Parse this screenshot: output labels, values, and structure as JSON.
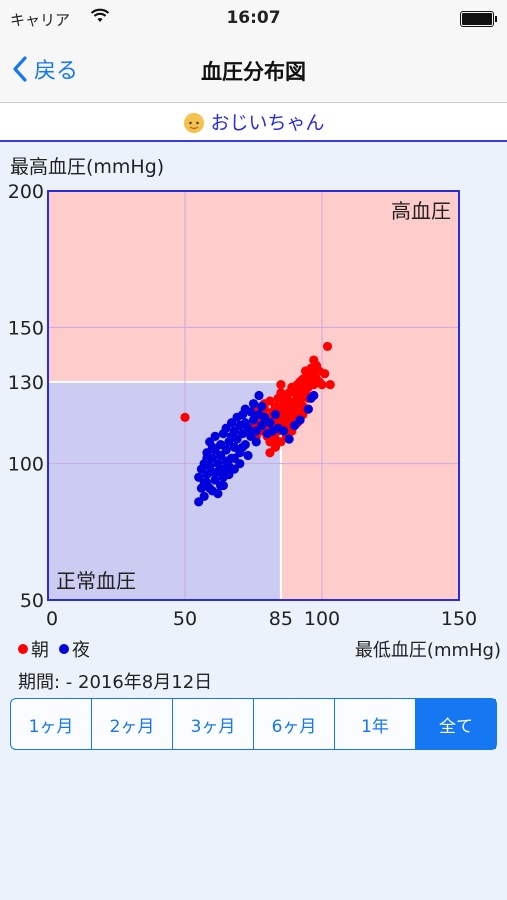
{
  "status_bar": {
    "carrier": "キャリア",
    "time": "16:07"
  },
  "nav": {
    "back_label": "戻る",
    "title": "血圧分布図"
  },
  "profile": {
    "name": "おじいちゃん",
    "icon": "grandpa-face-icon"
  },
  "legend": {
    "morning": "朝",
    "night": "夜"
  },
  "period": "期間: - 2016年8月12日",
  "segments": [
    {
      "label": "1ヶ月",
      "active": false
    },
    {
      "label": "2ヶ月",
      "active": false
    },
    {
      "label": "3ヶ月",
      "active": false
    },
    {
      "label": "6ヶ月",
      "active": false
    },
    {
      "label": "1年",
      "active": false
    },
    {
      "label": "全て",
      "active": true
    }
  ],
  "colors": {
    "accent": "#1577f2",
    "morning": "#ff0000",
    "night": "#0000dd",
    "high_zone": "#ffcccc",
    "normal_zone": "#ccccf2",
    "frame": "#2c2cd8"
  },
  "chart_data": {
    "type": "scatter",
    "title": "",
    "xlabel": "最低血圧(mmHg)",
    "ylabel": "最高血圧(mmHg)",
    "xlim": [
      0,
      150
    ],
    "ylim": [
      50,
      200
    ],
    "xticks": [
      0,
      50,
      85,
      100,
      150
    ],
    "yticks": [
      50,
      100,
      130,
      150,
      200
    ],
    "zones": [
      {
        "label": "高血圧",
        "corner": "top-right"
      },
      {
        "label": "正常血圧",
        "x_max": 85,
        "y_max": 130,
        "corner": "bottom-left"
      }
    ],
    "grid": true,
    "series": [
      {
        "name": "朝",
        "color": "#ff0000",
        "points": [
          [
            50,
            117
          ],
          [
            73,
            112
          ],
          [
            75,
            114
          ],
          [
            76,
            110
          ],
          [
            77,
            116
          ],
          [
            78,
            118
          ],
          [
            78,
            112
          ],
          [
            79,
            120
          ],
          [
            79,
            114
          ],
          [
            80,
            110
          ],
          [
            80,
            117
          ],
          [
            81,
            123
          ],
          [
            81,
            113
          ],
          [
            81,
            108
          ],
          [
            82,
            119
          ],
          [
            82,
            115
          ],
          [
            82,
            111
          ],
          [
            83,
            121
          ],
          [
            83,
            118
          ],
          [
            83,
            114
          ],
          [
            83,
            109
          ],
          [
            84,
            124
          ],
          [
            84,
            117
          ],
          [
            84,
            112
          ],
          [
            85,
            126
          ],
          [
            85,
            120
          ],
          [
            85,
            116
          ],
          [
            85,
            113
          ],
          [
            86,
            122
          ],
          [
            86,
            118
          ],
          [
            86,
            115
          ],
          [
            87,
            125
          ],
          [
            87,
            120
          ],
          [
            87,
            117
          ],
          [
            88,
            123
          ],
          [
            88,
            119
          ],
          [
            88,
            114
          ],
          [
            89,
            128
          ],
          [
            89,
            121
          ],
          [
            89,
            117
          ],
          [
            90,
            126
          ],
          [
            90,
            122
          ],
          [
            90,
            118
          ],
          [
            91,
            129
          ],
          [
            91,
            124
          ],
          [
            91,
            120
          ],
          [
            92,
            127
          ],
          [
            92,
            123
          ],
          [
            93,
            131
          ],
          [
            93,
            125
          ],
          [
            93,
            121
          ],
          [
            94,
            129
          ],
          [
            94,
            126
          ],
          [
            95,
            132
          ],
          [
            95,
            128
          ],
          [
            95,
            124
          ],
          [
            96,
            135
          ],
          [
            96,
            130
          ],
          [
            97,
            133
          ],
          [
            97,
            129
          ],
          [
            98,
            131
          ],
          [
            98,
            136
          ],
          [
            99,
            134
          ],
          [
            99,
            130
          ],
          [
            100,
            129
          ],
          [
            101,
            133
          ],
          [
            102,
            143
          ],
          [
            103,
            129
          ],
          [
            97,
            138
          ],
          [
            94,
            134
          ],
          [
            92,
            130
          ],
          [
            90,
            128
          ],
          [
            88,
            126
          ],
          [
            86,
            124
          ],
          [
            84,
            120
          ],
          [
            82,
            117
          ],
          [
            80,
            114
          ],
          [
            79,
            122
          ],
          [
            77,
            120
          ],
          [
            76,
            117
          ],
          [
            75,
            119
          ],
          [
            83,
            106
          ],
          [
            81,
            104
          ],
          [
            85,
            108
          ],
          [
            87,
            110
          ],
          [
            89,
            112
          ],
          [
            91,
            115
          ],
          [
            93,
            118
          ],
          [
            95,
            120
          ],
          [
            85,
            129
          ]
        ]
      },
      {
        "name": "夜",
        "color": "#0000dd",
        "points": [
          [
            55,
            95
          ],
          [
            56,
            98
          ],
          [
            56,
            91
          ],
          [
            57,
            100
          ],
          [
            57,
            88
          ],
          [
            58,
            104
          ],
          [
            58,
            96
          ],
          [
            58,
            93
          ],
          [
            59,
            108
          ],
          [
            59,
            99
          ],
          [
            60,
            102
          ],
          [
            60,
            97
          ],
          [
            60,
            90
          ],
          [
            61,
            110
          ],
          [
            61,
            105
          ],
          [
            61,
            94
          ],
          [
            62,
            100
          ],
          [
            62,
            97
          ],
          [
            63,
            107
          ],
          [
            63,
            103
          ],
          [
            63,
            92
          ],
          [
            64,
            111
          ],
          [
            64,
            98
          ],
          [
            64,
            95
          ],
          [
            65,
            113
          ],
          [
            65,
            105
          ],
          [
            65,
            101
          ],
          [
            66,
            108
          ],
          [
            66,
            99
          ],
          [
            66,
            96
          ],
          [
            67,
            115
          ],
          [
            67,
            110
          ],
          [
            67,
            102
          ],
          [
            68,
            112
          ],
          [
            68,
            106
          ],
          [
            68,
            98
          ],
          [
            69,
            117
          ],
          [
            69,
            109
          ],
          [
            70,
            114
          ],
          [
            70,
            104
          ],
          [
            70,
            100
          ],
          [
            71,
            118
          ],
          [
            71,
            111
          ],
          [
            72,
            120
          ],
          [
            72,
            115
          ],
          [
            72,
            107
          ],
          [
            73,
            113
          ],
          [
            73,
            103
          ],
          [
            74,
            119
          ],
          [
            74,
            110
          ],
          [
            75,
            122
          ],
          [
            75,
            116
          ],
          [
            76,
            108
          ],
          [
            76,
            112
          ],
          [
            77,
            125
          ],
          [
            77,
            118
          ],
          [
            78,
            121
          ],
          [
            78,
            114
          ],
          [
            79,
            117
          ],
          [
            80,
            111
          ],
          [
            81,
            115
          ],
          [
            82,
            112
          ],
          [
            83,
            118
          ],
          [
            84,
            113
          ],
          [
            86,
            112
          ],
          [
            88,
            109
          ],
          [
            90,
            114
          ],
          [
            92,
            116
          ],
          [
            95,
            120
          ],
          [
            96,
            124
          ],
          [
            97,
            125
          ],
          [
            57,
            93
          ],
          [
            59,
            91
          ],
          [
            62,
            89
          ],
          [
            55,
            86
          ],
          [
            58,
            102
          ],
          [
            60,
            106
          ],
          [
            64,
            92
          ],
          [
            68,
            102
          ],
          [
            71,
            106
          ]
        ]
      }
    ]
  }
}
